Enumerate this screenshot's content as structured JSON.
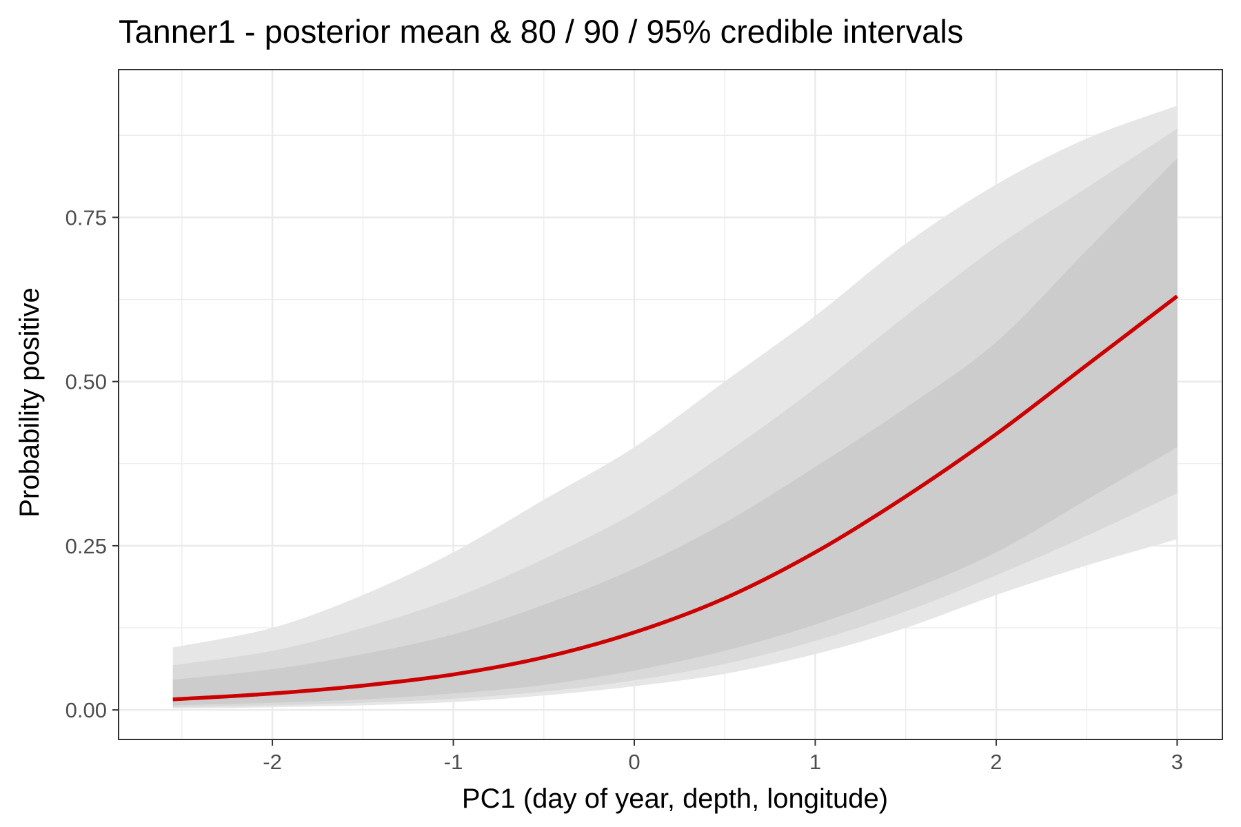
{
  "chart_data": {
    "type": "area",
    "title": "Tanner1 - posterior mean & 80 / 90 / 95% credible intervals",
    "xlabel": "PC1 (day of year, depth, longitude)",
    "ylabel": "Probability positive",
    "xlim": [
      -2.85,
      3.25
    ],
    "ylim": [
      -0.045,
      0.975
    ],
    "x_ticks": [
      -2,
      -1,
      0,
      1,
      2,
      3
    ],
    "x_tick_labels": [
      "-2",
      "-1",
      "0",
      "1",
      "2",
      "3"
    ],
    "y_ticks": [
      0,
      0.25,
      0.5,
      0.75
    ],
    "y_tick_labels": [
      "0.00",
      "0.25",
      "0.50",
      "0.75"
    ],
    "grid": true,
    "legend": "none",
    "colors": {
      "mean_line": "#cc0000",
      "band_95": "#e6e6e6",
      "band_90": "#d9d9d9",
      "band_80": "#cccccc",
      "grid": "#ebebeb",
      "panel_border": "#333333"
    },
    "x": [
      -2.55,
      -2.0,
      -1.5,
      -1.0,
      -0.5,
      0.0,
      0.5,
      1.0,
      1.5,
      2.0,
      2.5,
      3.0
    ],
    "series": [
      {
        "name": "mean",
        "values": [
          0.016,
          0.025,
          0.037,
          0.054,
          0.08,
          0.118,
          0.17,
          0.24,
          0.325,
          0.42,
          0.525,
          0.63
        ]
      },
      {
        "name": "95%",
        "lower": [
          0.002,
          0.004,
          0.007,
          0.012,
          0.022,
          0.036,
          0.055,
          0.085,
          0.125,
          0.175,
          0.22,
          0.26
        ],
        "upper": [
          0.095,
          0.125,
          0.175,
          0.24,
          0.32,
          0.4,
          0.5,
          0.6,
          0.71,
          0.8,
          0.87,
          0.92
        ]
      },
      {
        "name": "90%",
        "lower": [
          0.004,
          0.007,
          0.011,
          0.017,
          0.028,
          0.045,
          0.07,
          0.105,
          0.15,
          0.205,
          0.265,
          0.33
        ],
        "upper": [
          0.068,
          0.09,
          0.125,
          0.17,
          0.23,
          0.3,
          0.39,
          0.49,
          0.6,
          0.705,
          0.795,
          0.885
        ]
      },
      {
        "name": "80%",
        "lower": [
          0.007,
          0.011,
          0.016,
          0.025,
          0.038,
          0.06,
          0.09,
          0.13,
          0.18,
          0.24,
          0.32,
          0.4
        ],
        "upper": [
          0.046,
          0.062,
          0.085,
          0.115,
          0.16,
          0.215,
          0.285,
          0.37,
          0.46,
          0.56,
          0.7,
          0.84
        ]
      }
    ]
  }
}
